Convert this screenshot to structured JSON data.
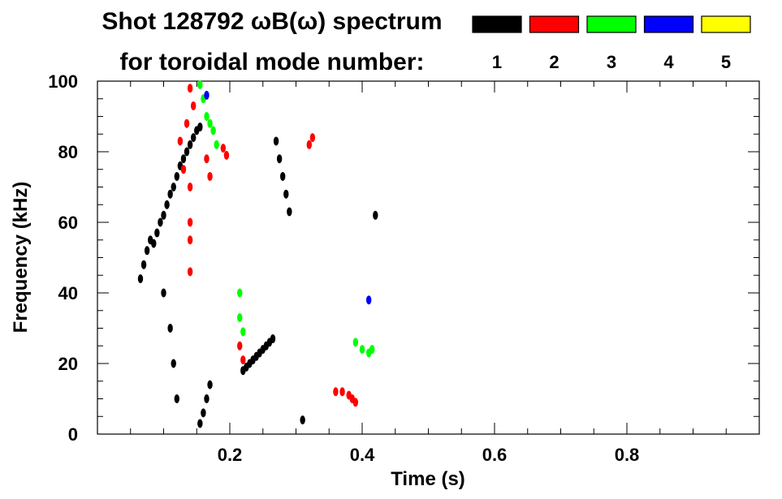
{
  "header": {
    "title": "Shot 128792 ωB(ω) spectrum",
    "subtitle": "for toroidal mode number:"
  },
  "legend": {
    "placement": "top-right",
    "items": [
      {
        "label": "1",
        "color": "#000000"
      },
      {
        "label": "2",
        "color": "#ff0000"
      },
      {
        "label": "3",
        "color": "#00ff00"
      },
      {
        "label": "4",
        "color": "#0000ff"
      },
      {
        "label": "5",
        "color": "#ffff00"
      }
    ]
  },
  "chart_data": {
    "type": "scatter",
    "title": "Shot 128792 ωB(ω) spectrum",
    "xlabel": "Time (s)",
    "ylabel": "Frequency (kHz)",
    "xlim": [
      0,
      1.0
    ],
    "ylim": [
      0,
      100
    ],
    "xticks": [
      {
        "v": 0.2,
        "label": "0.2"
      },
      {
        "v": 0.4,
        "label": "0.4"
      },
      {
        "v": 0.6,
        "label": "0.6"
      },
      {
        "v": 0.8,
        "label": "0.8"
      }
    ],
    "yticks": [
      {
        "v": 0,
        "label": "0"
      },
      {
        "v": 20,
        "label": "20"
      },
      {
        "v": 40,
        "label": "40"
      },
      {
        "v": 60,
        "label": "60"
      },
      {
        "v": 80,
        "label": "80"
      },
      {
        "v": 100,
        "label": "100"
      }
    ],
    "grid": false,
    "series": [
      {
        "name": "1",
        "color": "#000000",
        "points": [
          [
            0.065,
            44
          ],
          [
            0.07,
            48
          ],
          [
            0.075,
            52
          ],
          [
            0.08,
            55
          ],
          [
            0.085,
            54
          ],
          [
            0.09,
            57
          ],
          [
            0.095,
            60
          ],
          [
            0.1,
            62
          ],
          [
            0.105,
            65
          ],
          [
            0.11,
            68
          ],
          [
            0.115,
            70
          ],
          [
            0.12,
            73
          ],
          [
            0.125,
            76
          ],
          [
            0.13,
            78
          ],
          [
            0.135,
            80
          ],
          [
            0.14,
            82
          ],
          [
            0.145,
            84
          ],
          [
            0.15,
            86
          ],
          [
            0.155,
            87
          ],
          [
            0.1,
            40
          ],
          [
            0.11,
            30
          ],
          [
            0.115,
            20
          ],
          [
            0.12,
            10
          ],
          [
            0.22,
            18
          ],
          [
            0.225,
            19
          ],
          [
            0.23,
            20
          ],
          [
            0.235,
            21
          ],
          [
            0.24,
            22
          ],
          [
            0.245,
            23
          ],
          [
            0.25,
            24
          ],
          [
            0.255,
            25
          ],
          [
            0.26,
            26
          ],
          [
            0.265,
            27
          ],
          [
            0.27,
            83
          ],
          [
            0.275,
            78
          ],
          [
            0.28,
            73
          ],
          [
            0.285,
            68
          ],
          [
            0.29,
            63
          ],
          [
            0.155,
            3
          ],
          [
            0.16,
            6
          ],
          [
            0.165,
            10
          ],
          [
            0.17,
            14
          ],
          [
            0.31,
            4
          ],
          [
            0.42,
            62
          ]
        ]
      },
      {
        "name": "2",
        "color": "#ff0000",
        "points": [
          [
            0.14,
            98
          ],
          [
            0.145,
            93
          ],
          [
            0.135,
            88
          ],
          [
            0.125,
            83
          ],
          [
            0.13,
            75
          ],
          [
            0.14,
            70
          ],
          [
            0.14,
            60
          ],
          [
            0.14,
            55
          ],
          [
            0.14,
            46
          ],
          [
            0.165,
            78
          ],
          [
            0.17,
            73
          ],
          [
            0.19,
            81
          ],
          [
            0.195,
            79
          ],
          [
            0.32,
            82
          ],
          [
            0.325,
            84
          ],
          [
            0.215,
            25
          ],
          [
            0.22,
            21
          ],
          [
            0.36,
            12
          ],
          [
            0.37,
            12
          ],
          [
            0.38,
            11
          ],
          [
            0.385,
            10
          ],
          [
            0.39,
            9
          ]
        ]
      },
      {
        "name": "3",
        "color": "#00ff00",
        "points": [
          [
            0.155,
            99
          ],
          [
            0.16,
            95
          ],
          [
            0.165,
            90
          ],
          [
            0.17,
            88
          ],
          [
            0.175,
            86
          ],
          [
            0.18,
            82
          ],
          [
            0.215,
            40
          ],
          [
            0.215,
            33
          ],
          [
            0.22,
            29
          ],
          [
            0.39,
            26
          ],
          [
            0.4,
            24
          ],
          [
            0.41,
            23
          ],
          [
            0.415,
            24
          ]
        ]
      },
      {
        "name": "4",
        "color": "#0000ff",
        "points": [
          [
            0.165,
            96
          ],
          [
            0.41,
            38
          ]
        ]
      },
      {
        "name": "5",
        "color": "#ffff00",
        "points": []
      }
    ]
  }
}
